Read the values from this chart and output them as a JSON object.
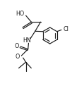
{
  "bg_color": "#ffffff",
  "line_color": "#1a1a1a",
  "line_width": 0.85,
  "font_size": 5.8,
  "fig_width": 1.19,
  "fig_height": 1.32,
  "dpi": 100,
  "xlim": [
    0,
    119
  ],
  "ylim": [
    0,
    132
  ]
}
